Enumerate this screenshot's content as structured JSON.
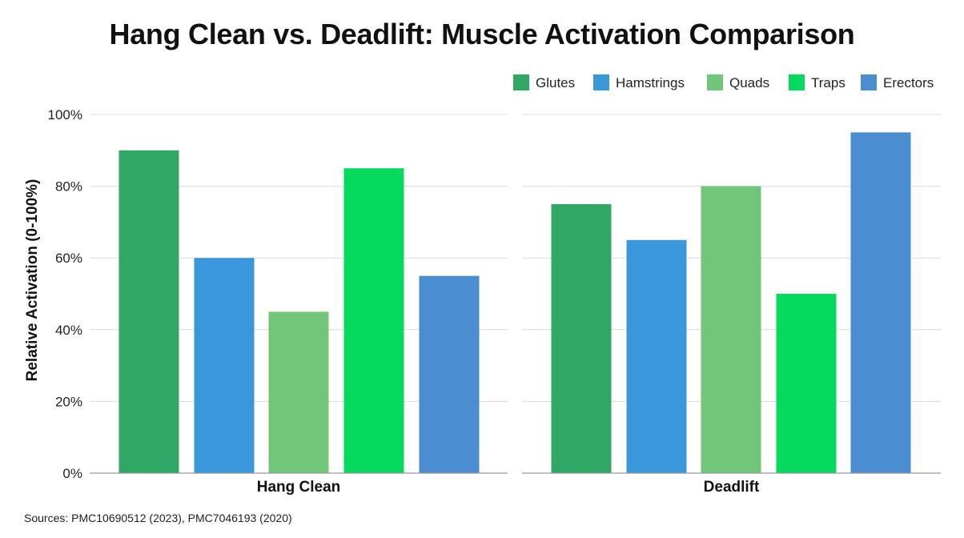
{
  "chart_data": {
    "type": "bar",
    "title": "Hang Clean vs. Deadlift: Muscle Activation Comparison",
    "ylabel": "Relative Activation (0-100%)",
    "xlabel": "",
    "ylim": [
      0,
      100
    ],
    "yticks": [
      "0%",
      "20%",
      "40%",
      "60%",
      "80%",
      "100%"
    ],
    "ytick_values": [
      0,
      20,
      40,
      60,
      80,
      100
    ],
    "grid": true,
    "legend_position": "top-right",
    "categories": [
      "Hang Clean",
      "Deadlift"
    ],
    "series": [
      {
        "name": "Glutes",
        "color": "#2fa866",
        "values": [
          90,
          75
        ]
      },
      {
        "name": "Hamstrings",
        "color": "#3a97da",
        "values": [
          60,
          65
        ]
      },
      {
        "name": "Quads",
        "color": "#72c67a",
        "values": [
          45,
          80
        ]
      },
      {
        "name": "Traps",
        "color": "#05d95e",
        "values": [
          85,
          50
        ]
      },
      {
        "name": "Erectors",
        "color": "#4a8ed1",
        "values": [
          55,
          95
        ]
      }
    ],
    "source": "Sources: PMC10690512 (2023), PMC7046193 (2020)"
  }
}
